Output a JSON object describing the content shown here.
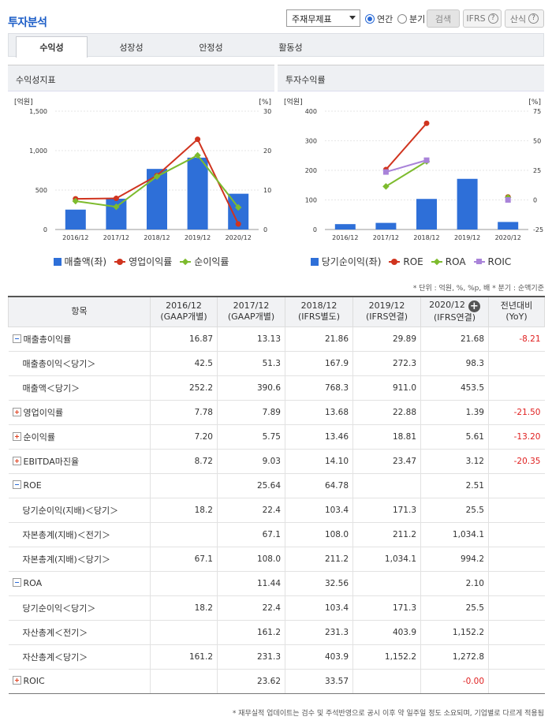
{
  "header": {
    "title": "투자분석",
    "select_value": "주재무제표",
    "radio_annual": "연간",
    "radio_quarter": "분기",
    "search_label": "검색",
    "ifrs_label": "IFRS",
    "formula_label": "산식",
    "help_glyph": "?"
  },
  "tabs": [
    {
      "label": "수익성",
      "active": true
    },
    {
      "label": "성장성",
      "active": false
    },
    {
      "label": "안정성",
      "active": false
    },
    {
      "label": "활동성",
      "active": false
    }
  ],
  "colors": {
    "bar": "#2e6fd8",
    "red": "#d0341f",
    "green": "#7dbb2e",
    "purple": "#a983d9",
    "negative": "#e02020"
  },
  "chart_data": [
    {
      "type": "bar+line",
      "title": "수익성지표",
      "left_unit": "[억원]",
      "right_unit": "[%]",
      "categories": [
        "2016/12",
        "2017/12",
        "2018/12",
        "2019/12",
        "2020/12"
      ],
      "left_ticks": [
        "0",
        "500",
        "1,000",
        "1,500"
      ],
      "right_ticks": [
        "0",
        "10",
        "20",
        "30"
      ],
      "ylim_left": [
        0,
        1500
      ],
      "ylim_right": [
        0,
        30
      ],
      "series": [
        {
          "name": "매출액(좌)",
          "kind": "bar",
          "axis": "left",
          "values": [
            252.2,
            390.6,
            768.3,
            911.0,
            453.5
          ]
        },
        {
          "name": "영업이익률",
          "kind": "line",
          "axis": "right",
          "marker": "circle",
          "values": [
            7.78,
            7.89,
            13.68,
            22.88,
            1.39
          ]
        },
        {
          "name": "순이익률",
          "kind": "line",
          "axis": "right",
          "marker": "diamond",
          "values": [
            7.2,
            5.75,
            13.46,
            18.81,
            5.61
          ]
        }
      ]
    },
    {
      "type": "bar+line",
      "title": "투자수익률",
      "left_unit": "[억원]",
      "right_unit": "[%]",
      "categories": [
        "2016/12",
        "2017/12",
        "2018/12",
        "2019/12",
        "2020/12"
      ],
      "left_ticks": [
        "0",
        "100",
        "200",
        "300",
        "400"
      ],
      "right_ticks": [
        "-25",
        "0",
        "25",
        "50",
        "75"
      ],
      "ylim_left": [
        0,
        400
      ],
      "ylim_right": [
        -25,
        75
      ],
      "series": [
        {
          "name": "당기순이익(좌)",
          "kind": "bar",
          "axis": "left",
          "values": [
            18.2,
            22.4,
            103.4,
            171.3,
            25.5
          ]
        },
        {
          "name": "ROE",
          "kind": "line",
          "axis": "right",
          "marker": "circle",
          "values": [
            null,
            25.64,
            64.78,
            null,
            2.51
          ]
        },
        {
          "name": "ROA",
          "kind": "line",
          "axis": "right",
          "marker": "diamond",
          "values": [
            null,
            11.44,
            32.56,
            null,
            2.1
          ]
        },
        {
          "name": "ROIC",
          "kind": "line",
          "axis": "right",
          "marker": "square",
          "values": [
            null,
            23.62,
            33.57,
            null,
            -0.0
          ]
        }
      ]
    }
  ],
  "unit_note": "* 단위 : 억원, %, %p, 배   * 분기 : 순액기준",
  "table": {
    "headers": [
      {
        "l1": "항목",
        "l2": ""
      },
      {
        "l1": "2016/12",
        "l2": "(GAAP개별)"
      },
      {
        "l1": "2017/12",
        "l2": "(GAAP개별)"
      },
      {
        "l1": "2018/12",
        "l2": "(IFRS별도)"
      },
      {
        "l1": "2019/12",
        "l2": "(IFRS연결)"
      },
      {
        "l1": "2020/12",
        "l2": "(IFRS연결)"
      },
      {
        "l1": "전년대비",
        "l2": "(YoY)"
      }
    ],
    "add_column_glyph": "+",
    "rows": [
      {
        "label": "매출총이익률",
        "toggle": "minus",
        "values": [
          "16.87",
          "13.13",
          "21.86",
          "29.89",
          "21.68"
        ],
        "yoy": "-8.21"
      },
      {
        "label": "매출총이익＜당기＞",
        "toggle": "",
        "values": [
          "42.5",
          "51.3",
          "167.9",
          "272.3",
          "98.3"
        ],
        "yoy": ""
      },
      {
        "label": "매출액＜당기＞",
        "toggle": "",
        "values": [
          "252.2",
          "390.6",
          "768.3",
          "911.0",
          "453.5"
        ],
        "yoy": ""
      },
      {
        "label": "영업이익률",
        "toggle": "plus",
        "values": [
          "7.78",
          "7.89",
          "13.68",
          "22.88",
          "1.39"
        ],
        "yoy": "-21.50"
      },
      {
        "label": "순이익률",
        "toggle": "plus",
        "values": [
          "7.20",
          "5.75",
          "13.46",
          "18.81",
          "5.61"
        ],
        "yoy": "-13.20"
      },
      {
        "label": "EBITDA마진율",
        "toggle": "plus",
        "values": [
          "8.72",
          "9.03",
          "14.10",
          "23.47",
          "3.12"
        ],
        "yoy": "-20.35"
      },
      {
        "label": "ROE",
        "toggle": "minus",
        "values": [
          "",
          "25.64",
          "64.78",
          "",
          "2.51"
        ],
        "yoy": ""
      },
      {
        "label": "당기순이익(지배)＜당기＞",
        "toggle": "",
        "values": [
          "18.2",
          "22.4",
          "103.4",
          "171.3",
          "25.5"
        ],
        "yoy": ""
      },
      {
        "label": "자본총계(지배)＜전기＞",
        "toggle": "",
        "values": [
          "",
          "67.1",
          "108.0",
          "211.2",
          "1,034.1"
        ],
        "yoy": ""
      },
      {
        "label": "자본총계(지배)＜당기＞",
        "toggle": "",
        "values": [
          "67.1",
          "108.0",
          "211.2",
          "1,034.1",
          "994.2"
        ],
        "yoy": ""
      },
      {
        "label": "ROA",
        "toggle": "minus",
        "values": [
          "",
          "11.44",
          "32.56",
          "",
          "2.10"
        ],
        "yoy": ""
      },
      {
        "label": "당기순이익＜당기＞",
        "toggle": "",
        "values": [
          "18.2",
          "22.4",
          "103.4",
          "171.3",
          "25.5"
        ],
        "yoy": ""
      },
      {
        "label": "자산총계＜전기＞",
        "toggle": "",
        "values": [
          "",
          "161.2",
          "231.3",
          "403.9",
          "1,152.2"
        ],
        "yoy": ""
      },
      {
        "label": "자산총계＜당기＞",
        "toggle": "",
        "values": [
          "161.2",
          "231.3",
          "403.9",
          "1,152.2",
          "1,272.8"
        ],
        "yoy": ""
      },
      {
        "label": "ROIC",
        "toggle": "plus",
        "values": [
          "",
          "23.62",
          "33.57",
          "",
          "-0.00"
        ],
        "yoy": ""
      }
    ]
  },
  "footnote": "* 재무실적 업데이트는 검수 및 주석반영으로 공시 이후 약 일주일 정도 소요되며, 기업별로 다르게 적용됨"
}
